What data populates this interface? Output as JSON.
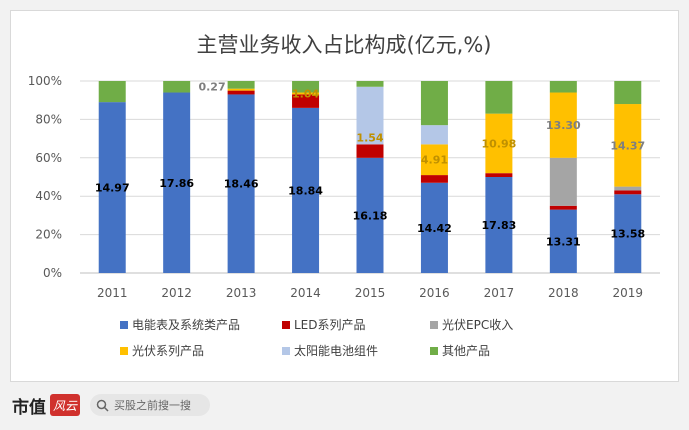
{
  "chart_data": {
    "type": "stacked-bar-percent",
    "title": "主营业务收入占比构成(亿元,%)",
    "categories": [
      "2011",
      "2012",
      "2013",
      "2014",
      "2015",
      "2016",
      "2017",
      "2018",
      "2019"
    ],
    "y_ticks": [
      "0%",
      "20%",
      "40%",
      "60%",
      "80%",
      "100%"
    ],
    "ylim": [
      0,
      100
    ],
    "series": [
      {
        "name": "电能表及系统类产品",
        "color": "#4472c4",
        "values": [
          89,
          94,
          93,
          86,
          60,
          47,
          50,
          33,
          41
        ]
      },
      {
        "name": "LED系列产品",
        "color": "#c00000",
        "values": [
          0,
          0,
          2,
          7,
          7,
          4,
          2,
          2,
          2
        ]
      },
      {
        "name": "光伏EPC收入",
        "color": "#a5a5a5",
        "values": [
          0,
          0,
          0,
          0,
          0,
          0,
          0,
          25,
          2
        ]
      },
      {
        "name": "光伏系列产品",
        "color": "#ffc000",
        "values": [
          0,
          0,
          1,
          1,
          0,
          16,
          31,
          34,
          43
        ]
      },
      {
        "name": "太阳能电池组件",
        "color": "#b4c7e7",
        "values": [
          0,
          0,
          0,
          0,
          30,
          10,
          0,
          0,
          0
        ]
      },
      {
        "name": "其他产品",
        "color": "#70ad47",
        "values": [
          11,
          6,
          4,
          6,
          3,
          23,
          17,
          6,
          12
        ]
      }
    ],
    "data_labels": [
      {
        "category": "2011",
        "series": "电能表及系统类产品",
        "text": "14.97",
        "color": "#000000"
      },
      {
        "category": "2012",
        "series": "电能表及系统类产品",
        "text": "17.86",
        "color": "#000000"
      },
      {
        "category": "2013",
        "series": "电能表及系统类产品",
        "text": "18.46",
        "color": "#000000"
      },
      {
        "category": "2014",
        "series": "电能表及系统类产品",
        "text": "18.84",
        "color": "#000000"
      },
      {
        "category": "2015",
        "series": "电能表及系统类产品",
        "text": "16.18",
        "color": "#000000"
      },
      {
        "category": "2016",
        "series": "电能表及系统类产品",
        "text": "14.42",
        "color": "#000000"
      },
      {
        "category": "2017",
        "series": "电能表及系统类产品",
        "text": "17.83",
        "color": "#000000"
      },
      {
        "category": "2018",
        "series": "电能表及系统类产品",
        "text": "13.31",
        "color": "#000000"
      },
      {
        "category": "2019",
        "series": "电能表及系统类产品",
        "text": "13.58",
        "color": "#000000"
      },
      {
        "category": "2013",
        "series": "光伏系列产品",
        "text": "0.27",
        "color": "#7f7f7f",
        "side": "left"
      },
      {
        "category": "2014",
        "series": "光伏系列产品",
        "text": "1.04",
        "color": "#bf9000"
      },
      {
        "category": "2015",
        "series": "LED系列产品",
        "text": "1.54",
        "color": "#bf9000",
        "offset": "above"
      },
      {
        "category": "2016",
        "series": "光伏系列产品",
        "text": "4.91",
        "color": "#bf9000"
      },
      {
        "category": "2017",
        "series": "光伏系列产品",
        "text": "10.98",
        "color": "#bf9000"
      },
      {
        "category": "2018",
        "series": "光伏系列产品",
        "text": "13.30",
        "color": "#7f7f7f"
      },
      {
        "category": "2019",
        "series": "光伏系列产品",
        "text": "14.37",
        "color": "#7f7f7f"
      }
    ]
  },
  "footer": {
    "brand": "市值",
    "logo_text": "风云",
    "search_placeholder": "买股之前搜一搜"
  },
  "colors": {
    "background": "#f2f2f2",
    "brand_red": "#d0312d"
  }
}
